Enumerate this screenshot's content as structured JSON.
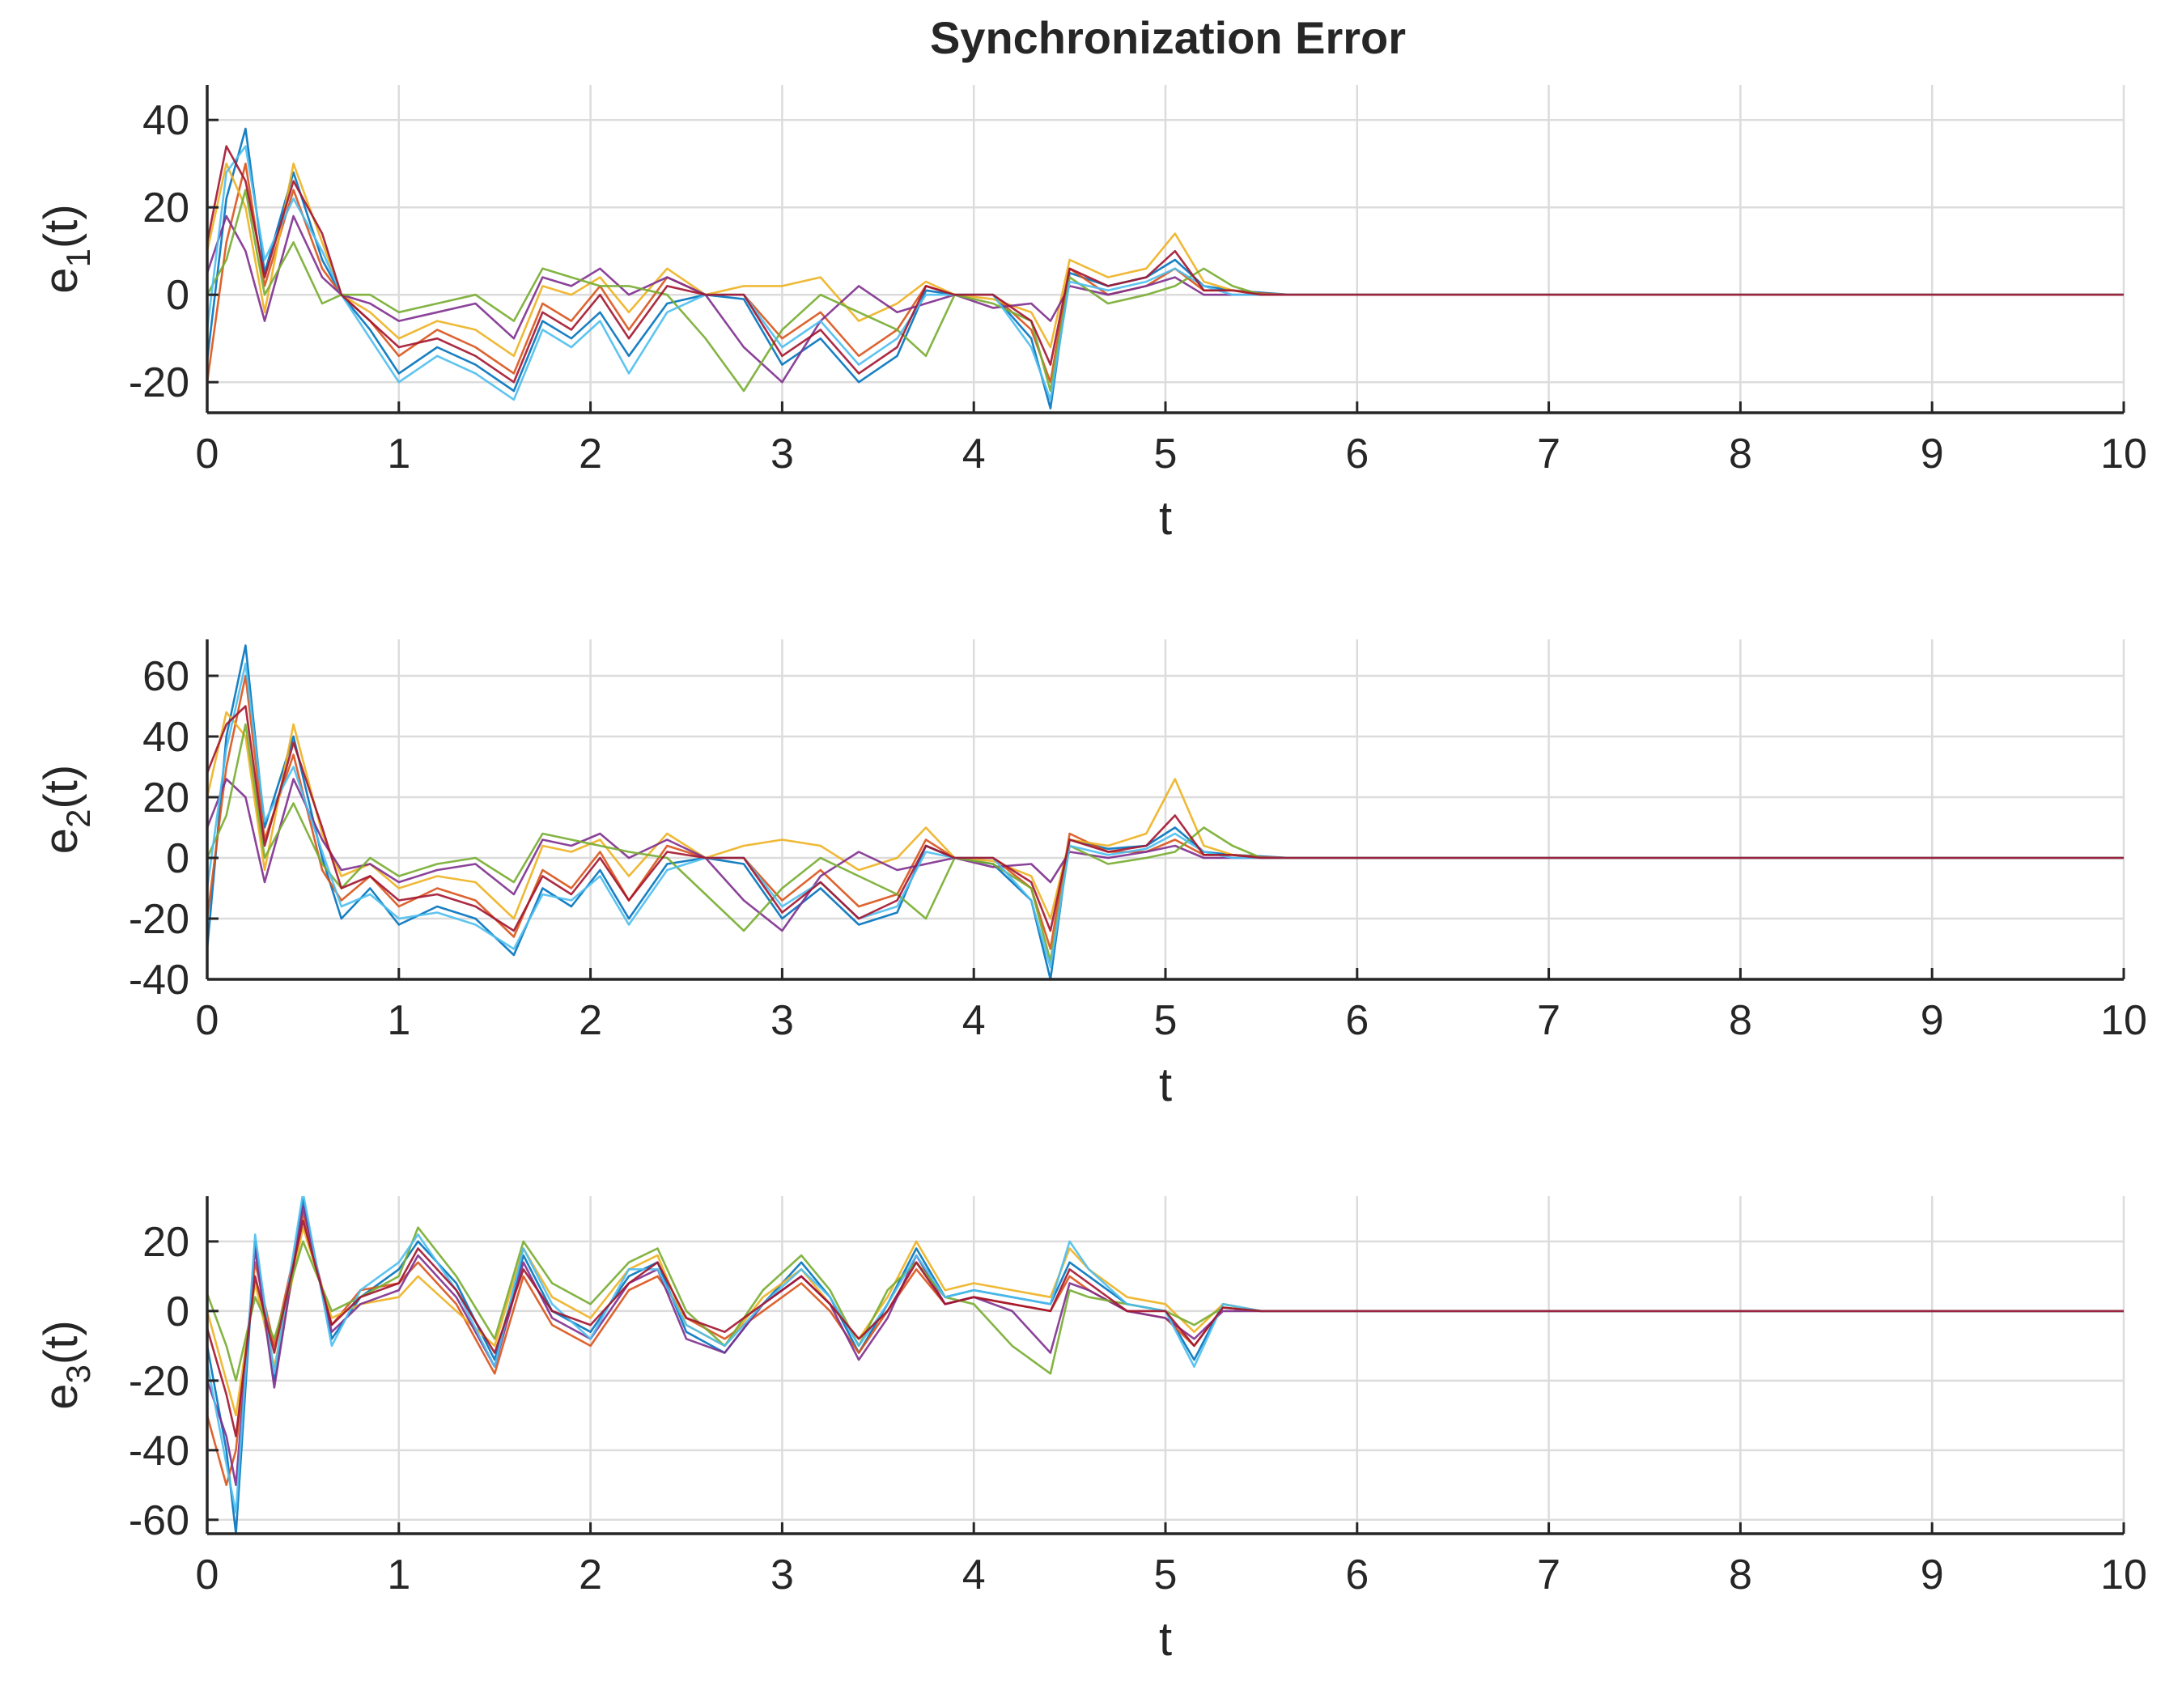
{
  "title": "Synchronization Error",
  "colors": {
    "axis": "#262626",
    "grid": "#dcdcdc",
    "series_palette": [
      "#0072BD",
      "#D95319",
      "#EDB120",
      "#7E2F8E",
      "#77AC30",
      "#4DBEEE",
      "#A2142F"
    ]
  },
  "chart_data": [
    {
      "type": "line",
      "ylabel": "e",
      "ylabel_sub": "1",
      "ylabel_suffix": "(t)",
      "xlabel": "t",
      "xlim": [
        0,
        10
      ],
      "ylim": [
        -27,
        48
      ],
      "xticks": [
        "0",
        "1",
        "2",
        "3",
        "4",
        "5",
        "6",
        "7",
        "8",
        "9",
        "10"
      ],
      "yticks": [
        {
          "value": -20,
          "label": "-20"
        },
        {
          "value": 0,
          "label": "0"
        },
        {
          "value": 20,
          "label": "20"
        },
        {
          "value": 40,
          "label": "40"
        }
      ],
      "grid": true,
      "x": [
        0,
        0.1,
        0.2,
        0.3,
        0.45,
        0.6,
        0.7,
        0.85,
        1.0,
        1.2,
        1.4,
        1.6,
        1.75,
        1.9,
        2.05,
        2.2,
        2.4,
        2.6,
        2.8,
        3.0,
        3.2,
        3.4,
        3.6,
        3.75,
        3.9,
        4.1,
        4.3,
        4.4,
        4.5,
        4.7,
        4.9,
        5.05,
        5.2,
        5.35,
        5.5,
        5.65,
        6,
        7,
        8,
        9,
        10
      ],
      "series": [
        {
          "values": [
            -15,
            22,
            38,
            5,
            28,
            8,
            0,
            -8,
            -18,
            -12,
            -16,
            -22,
            -6,
            -10,
            -4,
            -14,
            -2,
            0,
            -1,
            -16,
            -10,
            -20,
            -14,
            1,
            0,
            0,
            -10,
            -26,
            5,
            2,
            4,
            8,
            2,
            1,
            0.5,
            0,
            0,
            0,
            0,
            0,
            0
          ]
        },
        {
          "values": [
            -20,
            12,
            30,
            2,
            24,
            6,
            0,
            -6,
            -14,
            -8,
            -12,
            -18,
            -2,
            -6,
            2,
            -8,
            4,
            0,
            0,
            -10,
            -4,
            -14,
            -8,
            2,
            0,
            0,
            -8,
            -20,
            6,
            0,
            2,
            6,
            1,
            1,
            0.3,
            0,
            0,
            0,
            0,
            0,
            0
          ]
        },
        {
          "values": [
            10,
            30,
            20,
            -4,
            30,
            12,
            0,
            -4,
            -10,
            -6,
            -8,
            -14,
            2,
            0,
            4,
            -4,
            6,
            0,
            2,
            2,
            4,
            -6,
            -2,
            3,
            0,
            -1,
            -4,
            -12,
            8,
            4,
            6,
            14,
            3,
            1,
            0,
            0,
            0,
            0,
            0,
            0,
            0
          ]
        },
        {
          "values": [
            5,
            18,
            10,
            -6,
            18,
            4,
            0,
            -2,
            -6,
            -4,
            -2,
            -10,
            4,
            2,
            6,
            0,
            4,
            0,
            -12,
            -20,
            -6,
            2,
            -4,
            -2,
            0,
            -3,
            -2,
            -6,
            2,
            0,
            2,
            4,
            0,
            0,
            0,
            0,
            0,
            0,
            0,
            0,
            0
          ]
        },
        {
          "values": [
            0,
            8,
            24,
            0,
            12,
            -2,
            0,
            0,
            -4,
            -2,
            0,
            -6,
            6,
            4,
            2,
            2,
            0,
            -10,
            -22,
            -8,
            0,
            -4,
            -8,
            -14,
            0,
            -2,
            -6,
            -22,
            4,
            -2,
            0,
            2,
            6,
            2,
            0,
            0,
            0,
            0,
            0,
            0,
            0
          ]
        },
        {
          "values": [
            -8,
            28,
            34,
            8,
            22,
            10,
            0,
            -10,
            -20,
            -14,
            -18,
            -24,
            -8,
            -12,
            -6,
            -18,
            -4,
            0,
            0,
            -12,
            -6,
            -16,
            -10,
            0,
            0,
            0,
            -12,
            -24,
            3,
            1,
            3,
            6,
            2,
            0,
            0,
            0,
            0,
            0,
            0,
            0,
            0
          ]
        },
        {
          "values": [
            12,
            34,
            26,
            4,
            26,
            14,
            0,
            -6,
            -12,
            -10,
            -14,
            -20,
            -4,
            -8,
            0,
            -10,
            2,
            0,
            0,
            -14,
            -8,
            -18,
            -12,
            2,
            0,
            0,
            -6,
            -16,
            6,
            2,
            4,
            10,
            1,
            1,
            0,
            0,
            0,
            0,
            0,
            0,
            0
          ]
        }
      ]
    },
    {
      "type": "line",
      "ylabel": "e",
      "ylabel_sub": "2",
      "ylabel_suffix": "(t)",
      "xlabel": "t",
      "xlim": [
        0,
        10
      ],
      "ylim": [
        -40,
        72
      ],
      "xticks": [
        "0",
        "1",
        "2",
        "3",
        "4",
        "5",
        "6",
        "7",
        "8",
        "9",
        "10"
      ],
      "yticks": [
        {
          "value": -40,
          "label": "-40"
        },
        {
          "value": -20,
          "label": "-20"
        },
        {
          "value": 0,
          "label": "0"
        },
        {
          "value": 20,
          "label": "20"
        },
        {
          "value": 40,
          "label": "40"
        },
        {
          "value": 60,
          "label": "60"
        }
      ],
      "grid": true,
      "x": [
        0,
        0.1,
        0.2,
        0.3,
        0.45,
        0.6,
        0.7,
        0.85,
        1.0,
        1.2,
        1.4,
        1.6,
        1.75,
        1.9,
        2.05,
        2.2,
        2.4,
        2.6,
        2.8,
        3.0,
        3.2,
        3.4,
        3.6,
        3.75,
        3.9,
        4.1,
        4.3,
        4.4,
        4.5,
        4.7,
        4.9,
        5.05,
        5.2,
        5.35,
        5.5,
        5.65,
        6,
        7,
        8,
        9,
        10
      ],
      "series": [
        {
          "values": [
            -30,
            40,
            70,
            10,
            40,
            0,
            -20,
            -10,
            -22,
            -16,
            -20,
            -32,
            -10,
            -16,
            -4,
            -20,
            -2,
            0,
            -2,
            -20,
            -10,
            -22,
            -18,
            4,
            0,
            -2,
            -14,
            -40,
            6,
            3,
            4,
            10,
            2,
            1,
            0.5,
            0,
            0,
            0,
            0,
            0,
            0
          ]
        },
        {
          "values": [
            -20,
            30,
            60,
            6,
            34,
            -4,
            -14,
            -6,
            -16,
            -10,
            -14,
            -26,
            -4,
            -10,
            2,
            -14,
            4,
            0,
            0,
            -14,
            -4,
            -16,
            -12,
            6,
            0,
            0,
            -10,
            -30,
            8,
            2,
            2,
            6,
            1,
            1,
            0.3,
            0,
            0,
            0,
            0,
            0,
            0
          ]
        },
        {
          "values": [
            20,
            48,
            40,
            -4,
            44,
            8,
            -6,
            -2,
            -10,
            -6,
            -8,
            -20,
            4,
            2,
            6,
            -6,
            8,
            0,
            4,
            6,
            4,
            -4,
            0,
            10,
            0,
            -1,
            -6,
            -20,
            6,
            4,
            8,
            26,
            4,
            1,
            0,
            0,
            0,
            0,
            0,
            0,
            0
          ]
        },
        {
          "values": [
            10,
            26,
            20,
            -8,
            26,
            6,
            -4,
            -2,
            -8,
            -4,
            -2,
            -12,
            6,
            4,
            8,
            0,
            6,
            0,
            -14,
            -24,
            -6,
            2,
            -4,
            -2,
            0,
            -3,
            -2,
            -8,
            2,
            0,
            2,
            4,
            0,
            0,
            0,
            0,
            0,
            0,
            0,
            0,
            0
          ]
        },
        {
          "values": [
            0,
            14,
            44,
            0,
            18,
            -2,
            -10,
            0,
            -6,
            -2,
            0,
            -8,
            8,
            6,
            4,
            2,
            0,
            -12,
            -24,
            -10,
            0,
            -6,
            -12,
            -20,
            0,
            -2,
            -10,
            -34,
            4,
            -2,
            0,
            2,
            10,
            4,
            0,
            0,
            0,
            0,
            0,
            0,
            0
          ]
        },
        {
          "values": [
            -10,
            36,
            64,
            12,
            30,
            2,
            -16,
            -12,
            -20,
            -18,
            -22,
            -30,
            -12,
            -14,
            -6,
            -22,
            -4,
            0,
            0,
            -16,
            -8,
            -20,
            -16,
            2,
            0,
            0,
            -14,
            -36,
            4,
            1,
            3,
            8,
            2,
            0,
            0,
            0,
            0,
            0,
            0,
            0,
            0
          ]
        },
        {
          "values": [
            28,
            44,
            50,
            4,
            38,
            10,
            -10,
            -6,
            -14,
            -12,
            -16,
            -24,
            -6,
            -12,
            0,
            -14,
            2,
            0,
            0,
            -18,
            -8,
            -20,
            -14,
            4,
            0,
            0,
            -8,
            -24,
            6,
            2,
            4,
            14,
            1,
            1,
            0,
            0,
            0,
            0,
            0,
            0,
            0
          ]
        }
      ]
    },
    {
      "type": "line",
      "ylabel": "e",
      "ylabel_sub": "3",
      "ylabel_suffix": "(t)",
      "xlabel": "t",
      "xlim": [
        0,
        10
      ],
      "ylim": [
        -64,
        33
      ],
      "xticks": [
        "0",
        "1",
        "2",
        "3",
        "4",
        "5",
        "6",
        "7",
        "8",
        "9",
        "10"
      ],
      "yticks": [
        {
          "value": -60,
          "label": "-60"
        },
        {
          "value": -40,
          "label": "-40"
        },
        {
          "value": -20,
          "label": "-20"
        },
        {
          "value": 0,
          "label": "0"
        },
        {
          "value": 20,
          "label": "20"
        }
      ],
      "grid": true,
      "x": [
        0,
        0.1,
        0.15,
        0.25,
        0.35,
        0.5,
        0.65,
        0.8,
        1.0,
        1.1,
        1.3,
        1.5,
        1.65,
        1.8,
        2.0,
        2.2,
        2.35,
        2.5,
        2.7,
        2.9,
        3.1,
        3.25,
        3.4,
        3.55,
        3.7,
        3.85,
        4.0,
        4.2,
        4.4,
        4.5,
        4.6,
        4.8,
        5.0,
        5.15,
        5.3,
        5.5,
        5.65,
        6,
        7,
        8,
        9,
        10
      ],
      "series": [
        {
          "values": [
            -10,
            -40,
            -64,
            20,
            -20,
            32,
            -8,
            4,
            12,
            20,
            8,
            -14,
            16,
            0,
            -6,
            10,
            14,
            -6,
            -12,
            2,
            14,
            4,
            -12,
            2,
            18,
            4,
            6,
            4,
            2,
            14,
            10,
            2,
            0,
            -14,
            2,
            0,
            0,
            0,
            0,
            0,
            0,
            0
          ]
        },
        {
          "values": [
            -30,
            -50,
            -40,
            14,
            -10,
            28,
            -4,
            6,
            8,
            14,
            2,
            -18,
            10,
            -4,
            -10,
            6,
            10,
            -2,
            -8,
            0,
            8,
            0,
            -12,
            0,
            12,
            2,
            4,
            2,
            0,
            10,
            6,
            0,
            -2,
            -10,
            1,
            0,
            0,
            0,
            0,
            0,
            0,
            0
          ]
        },
        {
          "values": [
            0,
            -20,
            -30,
            8,
            -16,
            24,
            -2,
            2,
            4,
            10,
            0,
            -10,
            18,
            4,
            -2,
            12,
            16,
            -4,
            -10,
            4,
            12,
            2,
            -8,
            4,
            20,
            6,
            8,
            6,
            4,
            18,
            12,
            4,
            2,
            -6,
            2,
            0,
            0,
            0,
            0,
            0,
            0,
            0
          ]
        },
        {
          "values": [
            -20,
            -36,
            -50,
            18,
            -22,
            30,
            -6,
            2,
            6,
            16,
            4,
            -16,
            14,
            -2,
            -8,
            8,
            12,
            -8,
            -12,
            2,
            10,
            2,
            -14,
            -2,
            16,
            2,
            4,
            0,
            -12,
            8,
            6,
            0,
            -2,
            -8,
            0,
            0,
            0,
            0,
            0,
            0,
            0,
            0
          ]
        },
        {
          "values": [
            5,
            -10,
            -20,
            4,
            -8,
            20,
            0,
            4,
            10,
            24,
            10,
            -8,
            20,
            8,
            2,
            14,
            18,
            0,
            -10,
            6,
            16,
            6,
            -10,
            6,
            14,
            4,
            2,
            -10,
            -18,
            6,
            4,
            2,
            0,
            -4,
            1,
            0,
            0,
            0,
            0,
            0,
            0,
            0
          ]
        },
        {
          "values": [
            -15,
            -44,
            -58,
            22,
            -18,
            34,
            -10,
            6,
            14,
            22,
            6,
            -16,
            18,
            2,
            -8,
            12,
            12,
            -4,
            -10,
            2,
            12,
            4,
            -10,
            2,
            16,
            4,
            6,
            4,
            2,
            20,
            12,
            2,
            0,
            -16,
            2,
            0,
            0,
            0,
            0,
            0,
            0,
            0
          ]
        },
        {
          "values": [
            -5,
            -24,
            -36,
            10,
            -12,
            26,
            -4,
            4,
            8,
            18,
            6,
            -12,
            12,
            0,
            -4,
            8,
            14,
            -2,
            -6,
            2,
            10,
            2,
            -8,
            0,
            14,
            2,
            4,
            2,
            0,
            12,
            8,
            0,
            0,
            -10,
            1,
            0,
            0,
            0,
            0,
            0,
            0,
            0
          ]
        }
      ]
    }
  ]
}
